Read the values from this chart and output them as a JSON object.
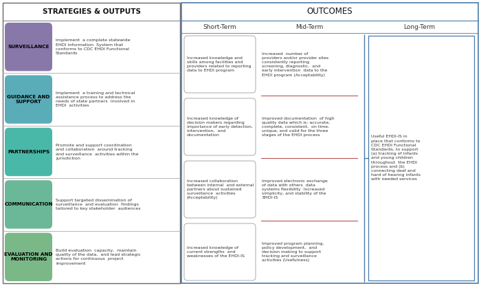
{
  "bg_color": "#ffffff",
  "strategies_header": "STRATEGIES & OUTPUTS",
  "outcomes_header": "OUTCOMES",
  "outcomes_subheaders": [
    "Short-Term",
    "Mid-Term",
    "Long-Term"
  ],
  "strategies": [
    {
      "label": "SURVEILLANCE",
      "color": "#8878aa",
      "text_color": "#000000"
    },
    {
      "label": "GUIDANCE AND\nSUPPORT",
      "color": "#5aacb8",
      "text_color": "#000000"
    },
    {
      "label": "PARTNERSHIPS",
      "color": "#4ab8a8",
      "text_color": "#000000"
    },
    {
      "label": "COMMUNICATION",
      "color": "#6ab898",
      "text_color": "#000000"
    },
    {
      "label": "EVALUATION AND\nMONITORING",
      "color": "#7ab888",
      "text_color": "#000000"
    }
  ],
  "strategy_outputs": [
    "Implement  a complete statewide\nEHDI Information  System that\nconforms to CDC EHDI Functional\nStandards",
    "Implement  a training and technical\nassistance process to address the\nneeds of state partners  involved in\nEHDI  activities",
    "Promote and support coordination\nand collaboration  around tracking\nand surveillance  activities within the\njurisdiction",
    "Support targeted dissemination of\nsurveillance  and evaluation  findings\ntailored to key stakeholder  audiences",
    "Build evaluation  capacity,  maintain\nquality of the data,  and lead strategic\nactions for continuous  project\nimprovement"
  ],
  "short_term": [
    "Increased knowledge and\nskills among facilities and\nproviders related to reporting\ndata to EHDI program",
    "Increased knowledge of\ndecision makers regarding\nimportance of early detection,\nintervention,  and\ndocumentation",
    "Increased collaboration\nbetween internal  and external\npartners about sustained\nsurveillance  activities\n(Acceptability)",
    "Increased knowledge of\ncurrent strengths  and\nweaknesses of the EHDI-IS"
  ],
  "mid_term": [
    "Increased  number of\nproviders and/or provider sites\nconsistently reporting\nscreening, diagnostic,  and\nearly intervention  data to the\nEHDI program (Acceptability)",
    "Improved documentation  of high\nquality data which is: accurate,\ncomplete, consistent,  on time,\nunique, and valid for the three\nstages of the EHDI process",
    "Improved electronic exchange\nof data with others  data\nsystems flexibility  Increased\nsimplicity, and stability of the\nEHDI-IS",
    "Improved program planning,\npolicy development,  and\ndecision making to support\ntracking and surveillance\nactivities (Usefulness)"
  ],
  "long_term": "Useful EHDI-IS in\nplace that conforms to\nCDC EHDI Functional\nStandards, to support\n(a) tracking of infants\nand young children\nthroughout  the EHDI\nprocess and (b)\nconnecting deaf and\nhard of hearing infants\nwith needed services",
  "so_border": "#666666",
  "oc_border": "#4a7aaa",
  "short_box_border": "#aaaaaa",
  "mid_sep_color": "#bb5555",
  "long_box_border": "#4a7aaa",
  "bracket_color": "#4a7aaa",
  "row_sep_color": "#aaaaaa",
  "header_sep_color": "#888888",
  "mid_italic_color": "#4a90c0",
  "long_italic_color": "#4a90c0"
}
